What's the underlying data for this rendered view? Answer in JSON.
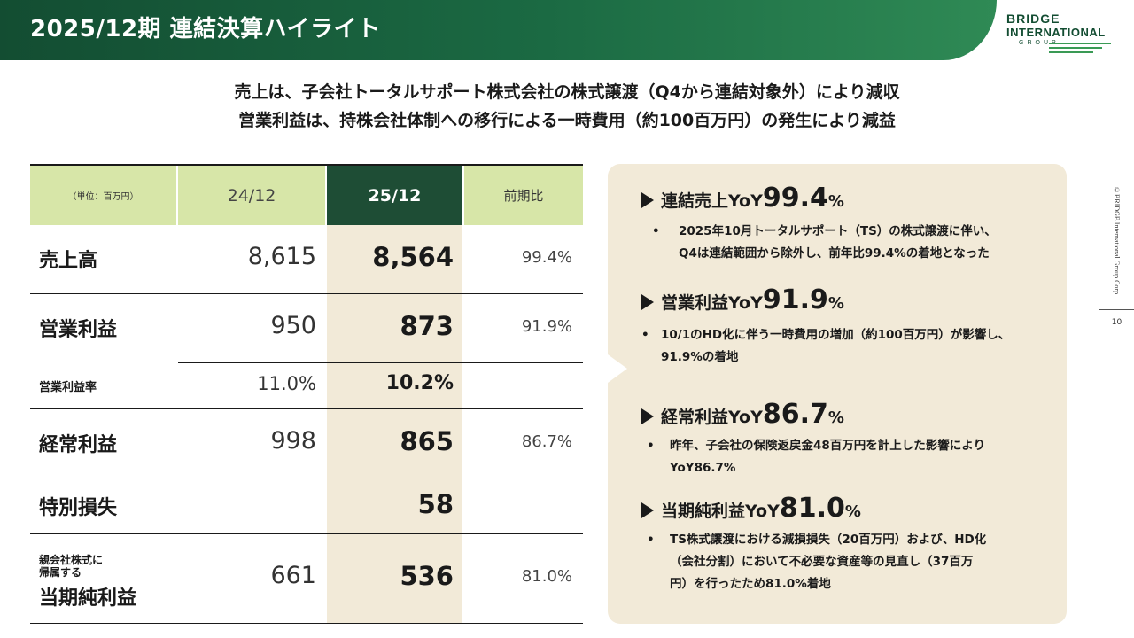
{
  "header": {
    "title": "2025/12期 連結決算ハイライト",
    "logo": {
      "line1": "BRIDGE",
      "line2": "INTERNATIONAL",
      "line3": "GROUP"
    }
  },
  "headline": {
    "line1": "売上は、子会社トータルサポート株式会社の株式譲渡（Q4から連結対象外）により減収",
    "line2": "営業利益は、持株会社体制への移行による一時費用（約100百万円）の発生により減益"
  },
  "table": {
    "unit_label": "（単位：百万円）",
    "columns": [
      "24/12",
      "25/12",
      "前期比"
    ],
    "rows": [
      {
        "label": "売上高",
        "prev": "8,615",
        "curr": "8,564",
        "ratio": "99.4%"
      },
      {
        "label": "営業利益",
        "prev": "950",
        "curr": "873",
        "ratio": "91.9%"
      },
      {
        "label": "営業利益率",
        "prev": "11.0%",
        "curr": "10.2%",
        "ratio": ""
      },
      {
        "label": "経常利益",
        "prev": "998",
        "curr": "865",
        "ratio": "86.7%"
      },
      {
        "label": "特別損失",
        "prev": "",
        "curr": "58",
        "ratio": ""
      },
      {
        "label_small1": "親会社株式に",
        "label_small2": "帰属する",
        "label": "当期純利益",
        "prev": "661",
        "curr": "536",
        "ratio": "81.0%"
      }
    ]
  },
  "commentary": [
    {
      "title": "連結売上YoY",
      "value": "99.4",
      "unit": "%",
      "bullet": "•",
      "lines": [
        "2025年10月トータルサポート（TS）の株式譲渡に伴い、",
        "Q4は連結範囲から除外し、前年比99.4%の着地となった"
      ]
    },
    {
      "title": "営業利益YoY",
      "value": "91.9",
      "unit": "%",
      "bullet": "•",
      "lines": [
        "10/1のHD化に伴う一時費用の増加（約100百万円）が影響し、",
        "91.9%の着地"
      ]
    },
    {
      "title": "経常利益YoY",
      "value": "86.7",
      "unit": "%",
      "bullet": "•",
      "lines": [
        "昨年、子会社の保険返戻金48百万円を計上した影響により",
        "YoY86.7%"
      ]
    },
    {
      "title": "当期純利益YoY",
      "value": "81.0",
      "unit": "%",
      "bullet": "•",
      "lines": [
        "TS株式譲渡における減損損失（20百万円）および、HD化",
        "（会社分割）において不必要な資産等の見直し（37百万",
        "円）を行ったため81.0%着地"
      ]
    }
  ],
  "footer": {
    "copyright": "©BRIDGE International Group Corp.",
    "page_number": "10"
  }
}
